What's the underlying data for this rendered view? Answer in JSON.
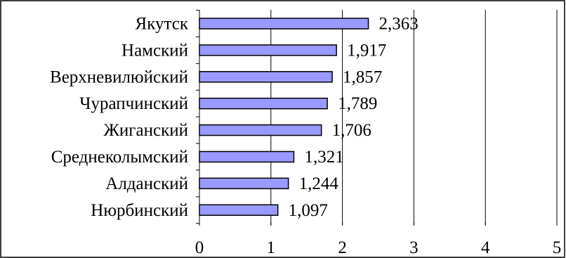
{
  "chart_data": {
    "type": "bar",
    "orientation": "horizontal",
    "categories": [
      "Якутск",
      "Намский",
      "Верхневилюйский",
      "Чурапчинский",
      "Жиганский",
      "Среднеколымский",
      "Алданский",
      "Нюрбинский"
    ],
    "values": [
      2.363,
      1.917,
      1.857,
      1.789,
      1.706,
      1.321,
      1.244,
      1.097
    ],
    "value_labels": [
      "2,363",
      "1,917",
      "1,857",
      "1,789",
      "1,706",
      "1,321",
      "1,244",
      "1,097"
    ],
    "x_ticks": [
      0,
      1,
      2,
      3,
      4,
      5
    ],
    "x_tick_labels": [
      "0",
      "1",
      "2",
      "3",
      "4",
      "5"
    ],
    "xlim": [
      0,
      5
    ],
    "grid": "vertical",
    "legend": "none",
    "colors": {
      "bar_fill": "#9999ff",
      "bar_stroke": "#000000",
      "grid": "#000000",
      "frame": "#000000"
    }
  }
}
